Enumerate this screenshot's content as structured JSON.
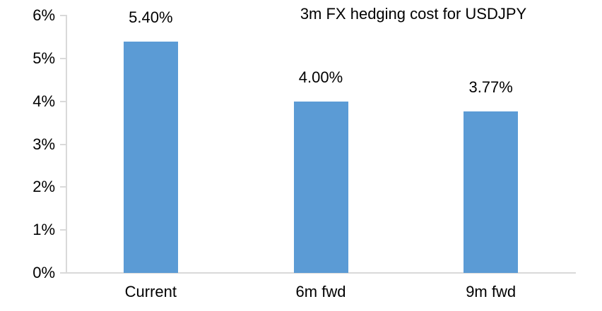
{
  "page": {
    "background": "#FFFFFF"
  },
  "chart_data": {
    "type": "bar",
    "title": "3m FX hedging cost for USDJPY",
    "categories": [
      "Current",
      "6m fwd",
      "9m fwd"
    ],
    "values": [
      5.4,
      4.0,
      3.77
    ],
    "data_labels": [
      "5.40%",
      "4.00%",
      "3.77%"
    ],
    "xlabel": "",
    "ylabel": "",
    "ylim": [
      0,
      6
    ],
    "ytick_step": 1,
    "ytick_labels": [
      "0%",
      "1%",
      "2%",
      "3%",
      "4%",
      "5%",
      "6%"
    ],
    "grid": false,
    "legend_position": "none",
    "bar_color": "#5B9BD5",
    "axis_color": "#D9D9D9",
    "text_color": "#000000"
  }
}
